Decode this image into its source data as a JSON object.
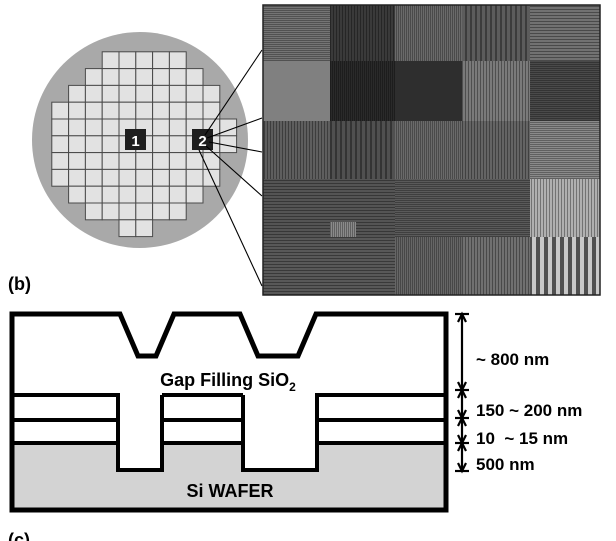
{
  "panel_b": {
    "label": "(b)",
    "wafer": {
      "die_labels": {
        "die_1": "1",
        "die_2": "2"
      },
      "colors": {
        "rim": "#a9a9a9",
        "die_fill": "#e2e2e2",
        "die_stroke": "#4a4a4a",
        "highlight_die": "#1e1e1e"
      }
    },
    "micrograph": {
      "description_free": true,
      "colors": {
        "border": "#222222"
      }
    }
  },
  "panel_c": {
    "label": "(c)",
    "layers": {
      "oxide_top": "Gap Filling SiO",
      "oxide_subscript": "2",
      "substrate": "Si WAFER"
    },
    "dimensions": {
      "top_thickness": "~ 800 nm",
      "layer_thickness": "150 ~ 200 nm",
      "thin_layer": "10  ~ 15 nm",
      "trench_depth": "500 nm"
    },
    "colors": {
      "substrate_fill": "#d3d3d3",
      "outline": "#000000"
    }
  }
}
